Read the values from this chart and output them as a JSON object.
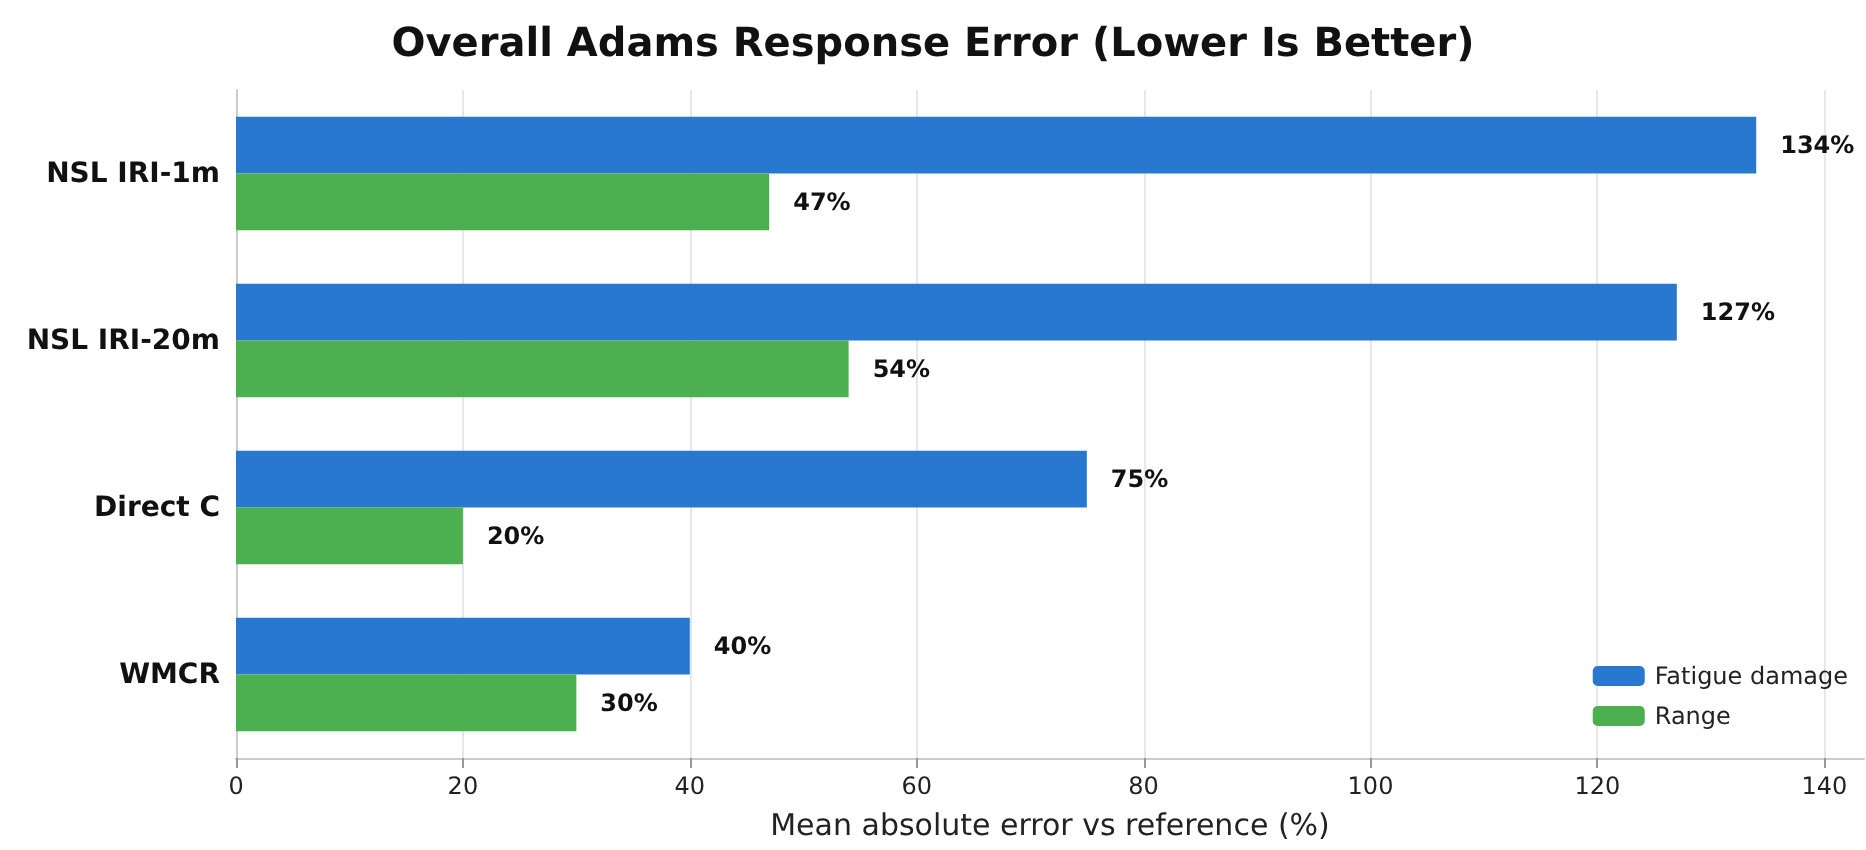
{
  "chart_data": {
    "type": "bar",
    "orientation": "horizontal",
    "title": "Overall Adams Response Error (Lower Is Better)",
    "xlabel": "Mean absolute error vs reference (%)",
    "categories": [
      "NSL IRI-1m",
      "NSL IRI-20m",
      "Direct C",
      "WMCR"
    ],
    "series": [
      {
        "name": "Fatigue damage",
        "color": "#2878d0",
        "values": [
          134,
          127,
          75,
          40
        ],
        "value_labels": [
          "134%",
          "127%",
          "75%",
          "40%"
        ]
      },
      {
        "name": "Range",
        "color": "#4caf50",
        "values": [
          47,
          54,
          20,
          30
        ],
        "value_labels": [
          "47%",
          "54%",
          "20%",
          "30%"
        ]
      }
    ],
    "xlim": [
      0,
      143.5
    ],
    "xticks": [
      0,
      20,
      40,
      60,
      80,
      100,
      120,
      140
    ],
    "grid": "x",
    "legend": "bottom right"
  }
}
